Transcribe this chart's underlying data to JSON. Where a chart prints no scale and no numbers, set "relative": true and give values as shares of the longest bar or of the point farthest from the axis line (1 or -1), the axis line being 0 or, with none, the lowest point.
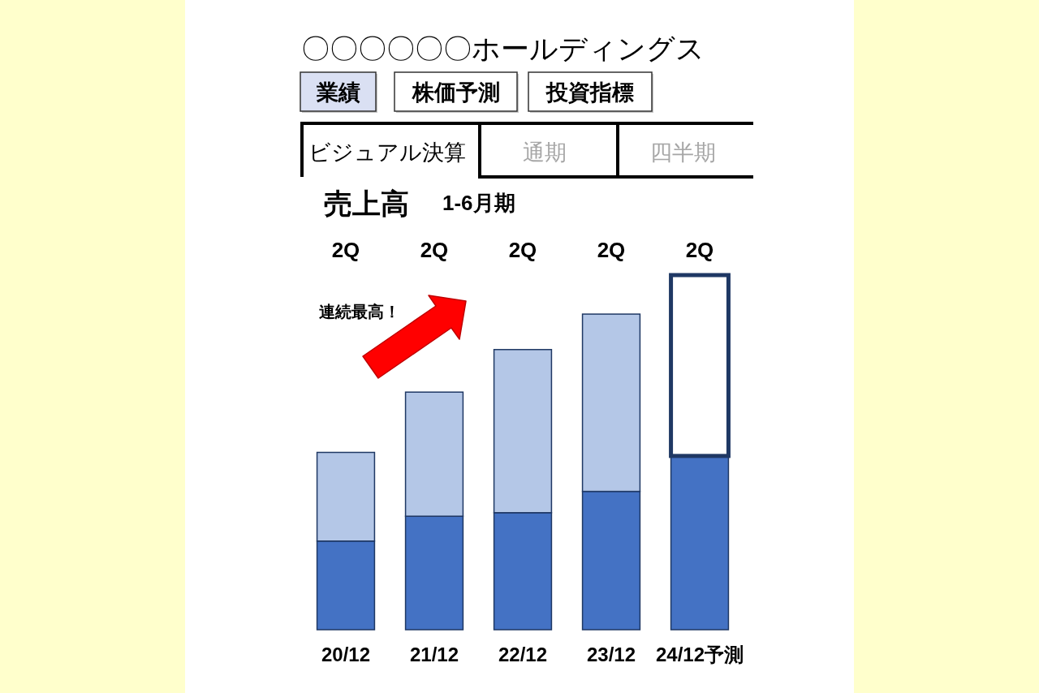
{
  "chart_data": [
    {
      "type": "other",
      "title": "〇〇〇〇〇〇ホールディングス",
      "annotations": [
        "業績",
        "株価予測",
        "投資指標",
        "ビジュアル決算",
        "通期",
        "四半期"
      ]
    },
    {
      "type": "bar",
      "title": "売上高",
      "subtitle": "1-6月期",
      "categories": [
        "20/12",
        "21/12",
        "22/12",
        "23/12",
        "24/12予測"
      ],
      "stacked": true,
      "relative": true,
      "series": [
        {
          "color": "#4472c4",
          "values": [
            0.25,
            0.32,
            0.33,
            0.39,
            0.49
          ]
        },
        {
          "colors": [
            "#b4c7e7",
            "#b4c7e7",
            "#b4c7e7",
            "#b4c7e7",
            "#ffffff"
          ],
          "values": [
            0.25,
            0.35,
            0.46,
            0.5,
            0.51
          ]
        }
      ],
      "annotations": [
        "2Q",
        "2Q",
        "2Q",
        "2Q",
        "2Q",
        "連続最高！"
      ]
    }
  ]
}
